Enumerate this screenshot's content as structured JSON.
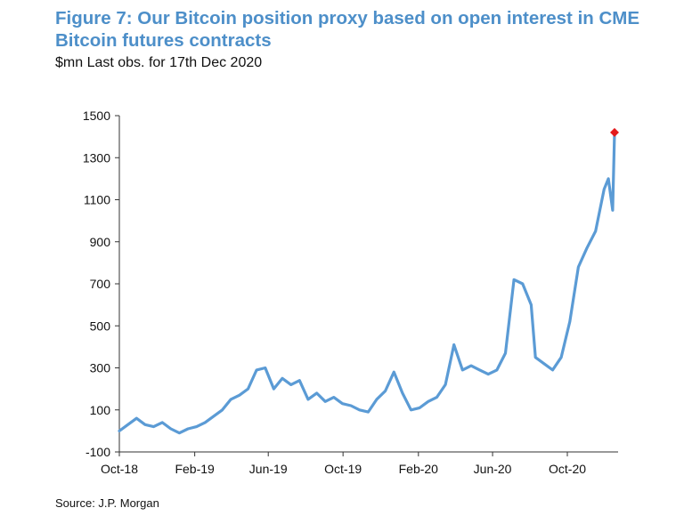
{
  "title": "Figure 7: Our Bitcoin position proxy based on open interest in CME Bitcoin futures contracts",
  "subtitle": "$mn Last obs. for 17th Dec 2020",
  "source": "Source: J.P. Morgan",
  "colors": {
    "title": "#4d8fc9",
    "line": "#5b9bd5",
    "last_marker": "#e31a1c",
    "axis": "#333333"
  },
  "chart_data": {
    "type": "line",
    "title": "Figure 7: Our Bitcoin position proxy based on open interest in CME Bitcoin futures contracts",
    "subtitle": "$mn Last obs. for 17th Dec 2020",
    "xlabel": "",
    "ylabel": "",
    "ylim": [
      -100,
      1500
    ],
    "yticks": [
      -100,
      100,
      300,
      500,
      700,
      900,
      1100,
      1300,
      1500
    ],
    "x_tick_labels": [
      "Oct-18",
      "Feb-19",
      "Jun-19",
      "Oct-19",
      "Feb-20",
      "Jun-20",
      "Oct-20"
    ],
    "grid": false,
    "legend": "none",
    "last_observation": {
      "date": "2020-12-17",
      "value": 1420,
      "marker": "red-diamond"
    },
    "series": [
      {
        "x": [
          "2018-10-01",
          "2018-10-15",
          "2018-10-29",
          "2018-11-12",
          "2018-11-26",
          "2018-12-10",
          "2018-12-24",
          "2019-01-07",
          "2019-01-21",
          "2019-02-04",
          "2019-02-18",
          "2019-03-04",
          "2019-03-18",
          "2019-04-01",
          "2019-04-15",
          "2019-04-29",
          "2019-05-13",
          "2019-05-27",
          "2019-06-10",
          "2019-06-24",
          "2019-07-08",
          "2019-07-22",
          "2019-08-05",
          "2019-08-19",
          "2019-09-02",
          "2019-09-16",
          "2019-09-30",
          "2019-10-14",
          "2019-10-28",
          "2019-11-11",
          "2019-11-25",
          "2019-12-09",
          "2019-12-23",
          "2020-01-06",
          "2020-01-20",
          "2020-02-03",
          "2020-02-17",
          "2020-03-02",
          "2020-03-16",
          "2020-03-30",
          "2020-04-13",
          "2020-04-27",
          "2020-05-11",
          "2020-05-25",
          "2020-06-08",
          "2020-06-22",
          "2020-07-06",
          "2020-07-20",
          "2020-08-03",
          "2020-08-10",
          "2020-08-24",
          "2020-09-07",
          "2020-09-21",
          "2020-10-05",
          "2020-10-19",
          "2020-11-02",
          "2020-11-16",
          "2020-11-30",
          "2020-12-07",
          "2020-12-14",
          "2020-12-17"
        ],
        "values": [
          0,
          30,
          60,
          30,
          20,
          40,
          10,
          -10,
          10,
          20,
          40,
          70,
          100,
          150,
          170,
          200,
          290,
          300,
          200,
          250,
          220,
          240,
          150,
          180,
          140,
          160,
          130,
          120,
          100,
          90,
          150,
          190,
          280,
          180,
          100,
          110,
          140,
          160,
          220,
          410,
          290,
          310,
          290,
          270,
          290,
          370,
          720,
          700,
          600,
          350,
          320,
          290,
          350,
          520,
          780,
          870,
          950,
          1150,
          1200,
          1050,
          1420
        ]
      }
    ]
  }
}
